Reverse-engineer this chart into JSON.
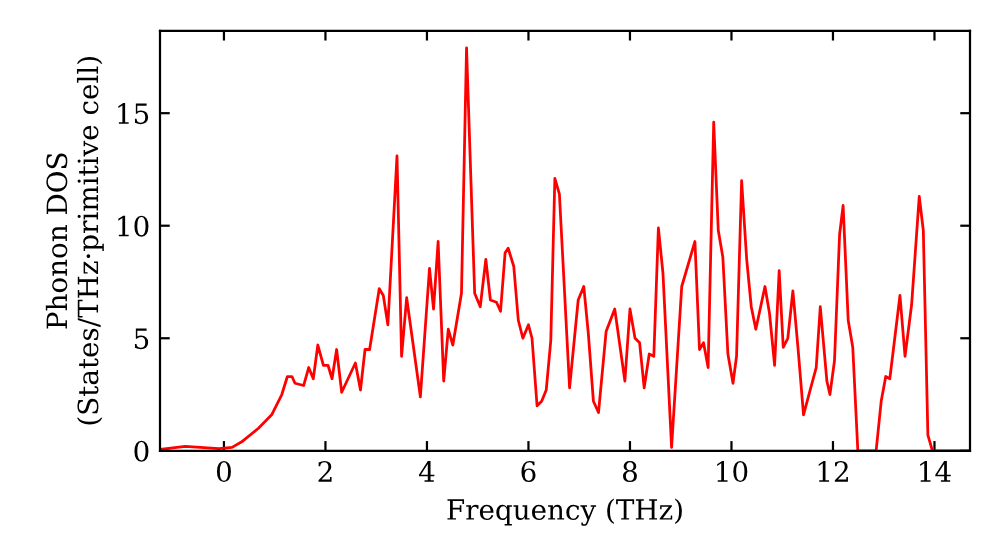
{
  "chart_data": {
    "type": "line",
    "xlabel": "Frequency (THz)",
    "ylabel": "Phonon DOS\n(States/THz·primitive cell)",
    "xlim": [
      -1.26,
      14.7
    ],
    "ylim": [
      0,
      18.66
    ],
    "xticks": [
      0,
      2,
      4,
      6,
      8,
      10,
      12,
      14
    ],
    "yticks": [
      0,
      5,
      10,
      15
    ],
    "grid": false,
    "legend": false,
    "marker": "none",
    "line_style": "solid",
    "series": [
      {
        "color": "#ff0000",
        "x": [
          -1.26,
          -0.76,
          -0.1,
          0.16,
          0.35,
          0.68,
          0.94,
          1.14,
          1.25,
          1.34,
          1.4,
          1.57,
          1.67,
          1.76,
          1.85,
          1.96,
          2.05,
          2.13,
          2.22,
          2.32,
          2.59,
          2.69,
          2.78,
          2.87,
          3.06,
          3.14,
          3.23,
          3.41,
          3.5,
          3.6,
          3.87,
          4.05,
          4.13,
          4.22,
          4.33,
          4.42,
          4.51,
          4.68,
          4.78,
          4.94,
          5.05,
          5.16,
          5.25,
          5.37,
          5.45,
          5.54,
          5.6,
          5.71,
          5.8,
          5.89,
          6.0,
          6.07,
          6.17,
          6.26,
          6.35,
          6.44,
          6.52,
          6.61,
          6.81,
          6.98,
          7.09,
          7.18,
          7.28,
          7.38,
          7.53,
          7.7,
          7.9,
          8.0,
          8.1,
          8.19,
          8.28,
          8.38,
          8.47,
          8.56,
          8.65,
          8.82,
          9.02,
          9.28,
          9.37,
          9.45,
          9.54,
          9.65,
          9.74,
          9.83,
          9.93,
          10.03,
          10.1,
          10.2,
          10.3,
          10.39,
          10.48,
          10.66,
          10.75,
          10.85,
          10.94,
          11.02,
          11.11,
          11.21,
          11.31,
          11.42,
          11.55,
          11.67,
          11.75,
          11.88,
          11.94,
          12.03,
          12.13,
          12.2,
          12.3,
          12.39,
          12.49,
          12.85,
          12.95,
          13.04,
          13.12,
          13.32,
          13.42,
          13.55,
          13.7,
          13.78,
          13.87,
          13.96,
          14.7
        ],
        "values": [
          0.06,
          0.2,
          0.1,
          0.15,
          0.4,
          1.0,
          1.6,
          2.5,
          3.3,
          3.3,
          3.0,
          2.9,
          3.7,
          3.2,
          4.7,
          3.8,
          3.8,
          3.2,
          4.5,
          2.6,
          3.9,
          2.7,
          4.5,
          4.5,
          7.2,
          6.9,
          5.6,
          13.1,
          4.2,
          6.8,
          2.4,
          8.1,
          6.3,
          9.3,
          3.1,
          5.4,
          4.7,
          7.0,
          17.9,
          7.0,
          6.4,
          8.5,
          6.7,
          6.6,
          6.2,
          8.8,
          9.0,
          8.2,
          5.8,
          5.0,
          5.6,
          5.0,
          2.0,
          2.2,
          2.7,
          4.9,
          12.1,
          11.4,
          2.8,
          6.7,
          7.3,
          5.2,
          2.2,
          1.7,
          5.3,
          6.3,
          3.1,
          6.3,
          5.0,
          4.8,
          2.8,
          4.3,
          4.2,
          9.9,
          7.9,
          0.15,
          7.3,
          9.3,
          4.5,
          4.8,
          3.7,
          14.6,
          9.8,
          8.6,
          4.3,
          3.0,
          4.2,
          12.0,
          8.5,
          6.4,
          5.4,
          7.3,
          6.1,
          3.8,
          8.0,
          4.6,
          5.0,
          7.1,
          4.6,
          1.6,
          2.7,
          3.7,
          6.4,
          3.1,
          2.5,
          4.0,
          9.6,
          10.9,
          5.8,
          4.6,
          0,
          0,
          2.2,
          3.3,
          3.2,
          6.9,
          4.2,
          6.5,
          11.3,
          9.8,
          0.7,
          0,
          0
        ]
      }
    ]
  }
}
